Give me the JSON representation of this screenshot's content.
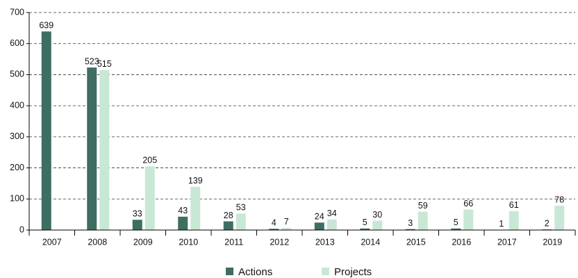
{
  "chart_data": {
    "type": "bar",
    "categories": [
      "2007",
      "2008",
      "2009",
      "2010",
      "2011",
      "2012",
      "2013",
      "2014",
      "2015",
      "2016",
      "2017",
      "2019"
    ],
    "series": [
      {
        "name": "Actions",
        "color": "#3e6e62",
        "values": [
          639,
          523,
          33,
          43,
          28,
          4,
          24,
          5,
          3,
          5,
          1,
          2
        ]
      },
      {
        "name": "Projects",
        "color": "#c9e7d5",
        "values": [
          null,
          515,
          205,
          139,
          53,
          7,
          34,
          30,
          59,
          66,
          61,
          78
        ]
      }
    ],
    "ylim": [
      0,
      700
    ],
    "yticks": [
      0,
      100,
      200,
      300,
      400,
      500,
      600,
      700
    ],
    "grid": true,
    "legend": "bottom"
  }
}
